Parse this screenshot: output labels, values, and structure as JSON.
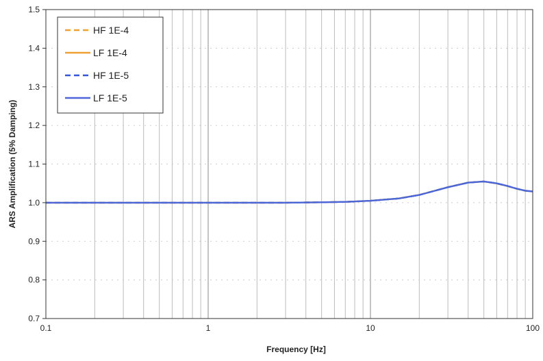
{
  "chart_data": {
    "type": "line",
    "xlabel": "Frequency [Hz]",
    "ylabel": "ARS Amplification (5% Damping)",
    "xscale": "log",
    "xlim": [
      0.1,
      100
    ],
    "ylim": [
      0.7,
      1.5
    ],
    "x_ticks": [
      "0.1",
      "1",
      "10",
      "100"
    ],
    "y_ticks": [
      "0.7",
      "0.8",
      "0.9",
      "1.0",
      "1.1",
      "1.2",
      "1.3",
      "1.4",
      "1.5"
    ],
    "grid": true,
    "legend_position": "top-left",
    "series": [
      {
        "name": "HF 1E-4",
        "style": "dashed",
        "color": "#f0a030",
        "x": [
          0.1,
          1,
          3,
          5,
          7,
          10,
          15,
          20,
          30,
          40,
          50,
          60,
          70,
          80,
          90,
          100
        ],
        "y": [
          1.0,
          1.0,
          1.0,
          1.001,
          1.002,
          1.005,
          1.011,
          1.02,
          1.04,
          1.052,
          1.055,
          1.05,
          1.043,
          1.036,
          1.031,
          1.029
        ]
      },
      {
        "name": "LF 1E-4",
        "style": "solid",
        "color": "#f0a030",
        "x": [
          0.1,
          1,
          3,
          5,
          7,
          10,
          15,
          20,
          30,
          40,
          50,
          60,
          70,
          80,
          90,
          100
        ],
        "y": [
          1.0,
          1.0,
          1.0,
          1.001,
          1.002,
          1.005,
          1.011,
          1.02,
          1.04,
          1.052,
          1.055,
          1.05,
          1.043,
          1.036,
          1.031,
          1.029
        ]
      },
      {
        "name": "HF 1E-5",
        "style": "dashed",
        "color": "#3355dd",
        "x": [
          0.1,
          1,
          3,
          5,
          7,
          10,
          15,
          20,
          30,
          40,
          50,
          60,
          70,
          80,
          90,
          100
        ],
        "y": [
          1.0,
          1.0,
          1.0,
          1.001,
          1.002,
          1.005,
          1.011,
          1.02,
          1.04,
          1.052,
          1.055,
          1.05,
          1.043,
          1.036,
          1.031,
          1.029
        ]
      },
      {
        "name": "LF 1E-5",
        "style": "solid",
        "color": "#4a66d9",
        "x": [
          0.1,
          1,
          3,
          5,
          7,
          10,
          15,
          20,
          30,
          40,
          50,
          60,
          70,
          80,
          90,
          100
        ],
        "y": [
          1.0,
          1.0,
          1.0,
          1.001,
          1.002,
          1.005,
          1.011,
          1.02,
          1.04,
          1.052,
          1.055,
          1.05,
          1.043,
          1.036,
          1.031,
          1.029
        ]
      }
    ]
  }
}
